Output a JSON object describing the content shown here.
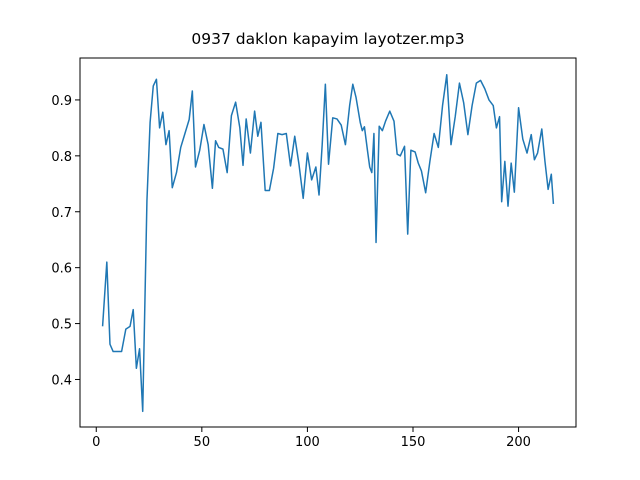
{
  "chart_data": {
    "type": "line",
    "title": "0937 daklon kapayim layotzer.mp3",
    "x": [
      3,
      5,
      6.5,
      8,
      10,
      12,
      14,
      16,
      17.5,
      19,
      20.5,
      22,
      24,
      25.5,
      27,
      28.5,
      30,
      31.5,
      33,
      34.5,
      36,
      38,
      40,
      42,
      44,
      45.5,
      47,
      49,
      51,
      53,
      55,
      56.5,
      58,
      60,
      62,
      64,
      66,
      68,
      69.5,
      71,
      73,
      75,
      76.5,
      78,
      80,
      82,
      84,
      86,
      88,
      90,
      92,
      94,
      96,
      98,
      100,
      102,
      104,
      105.5,
      107,
      108.5,
      110,
      112,
      114,
      116,
      118,
      120,
      121.5,
      123,
      125,
      126,
      127,
      128.5,
      129.5,
      130.5,
      131.5,
      132.5,
      134,
      135.5,
      137,
      139,
      141,
      142.5,
      144,
      146,
      147.5,
      149,
      151,
      152.5,
      154,
      156,
      158,
      160,
      162,
      164,
      166,
      168,
      170,
      172,
      174,
      176,
      178,
      180,
      182,
      184,
      186,
      188,
      189.5,
      191,
      192,
      193.5,
      195,
      196.5,
      198,
      200,
      202,
      204,
      206,
      207.5,
      209,
      211,
      212.5,
      214,
      215.5,
      216.5
    ],
    "series": [
      {
        "color": "#1f77b4",
        "values": [
          0.495,
          0.61,
          0.463,
          0.45,
          0.45,
          0.45,
          0.49,
          0.495,
          0.525,
          0.42,
          0.455,
          0.343,
          0.72,
          0.86,
          0.925,
          0.937,
          0.85,
          0.878,
          0.82,
          0.845,
          0.743,
          0.77,
          0.815,
          0.84,
          0.865,
          0.916,
          0.78,
          0.81,
          0.856,
          0.82,
          0.742,
          0.827,
          0.815,
          0.812,
          0.77,
          0.872,
          0.896,
          0.85,
          0.783,
          0.866,
          0.805,
          0.88,
          0.835,
          0.86,
          0.738,
          0.738,
          0.778,
          0.84,
          0.838,
          0.84,
          0.782,
          0.835,
          0.785,
          0.724,
          0.805,
          0.757,
          0.78,
          0.73,
          0.82,
          0.928,
          0.785,
          0.868,
          0.866,
          0.855,
          0.82,
          0.89,
          0.928,
          0.905,
          0.86,
          0.845,
          0.852,
          0.808,
          0.78,
          0.77,
          0.84,
          0.645,
          0.853,
          0.845,
          0.862,
          0.88,
          0.862,
          0.803,
          0.8,
          0.817,
          0.66,
          0.81,
          0.807,
          0.787,
          0.773,
          0.734,
          0.79,
          0.84,
          0.815,
          0.89,
          0.945,
          0.82,
          0.87,
          0.93,
          0.895,
          0.838,
          0.89,
          0.93,
          0.935,
          0.92,
          0.9,
          0.89,
          0.85,
          0.87,
          0.718,
          0.79,
          0.71,
          0.787,
          0.735,
          0.886,
          0.83,
          0.805,
          0.838,
          0.793,
          0.805,
          0.848,
          0.79,
          0.74,
          0.767,
          0.714
        ]
      }
    ],
    "xlim": [
      -7.7,
      227.2
    ],
    "ylim": [
      0.315,
      0.975
    ],
    "xticks": [
      0,
      50,
      100,
      150,
      200
    ],
    "yticks": [
      0.4,
      0.5,
      0.6,
      0.7,
      0.8,
      0.9
    ]
  }
}
